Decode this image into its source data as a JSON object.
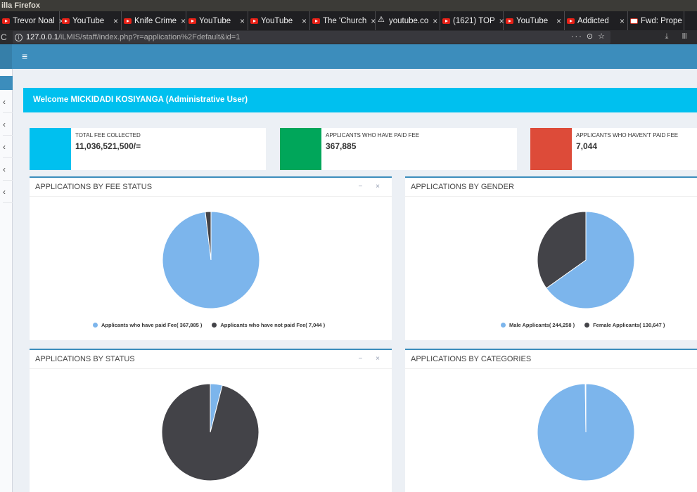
{
  "browser": {
    "title": "illa Firefox",
    "tabs": [
      {
        "label": "Trevor Noal",
        "icon": "youtube-icon"
      },
      {
        "label": "YouTube",
        "icon": "youtube-icon"
      },
      {
        "label": "Knife Crime",
        "icon": "youtube-icon"
      },
      {
        "label": "YouTube",
        "icon": "youtube-icon"
      },
      {
        "label": "YouTube",
        "icon": "youtube-icon"
      },
      {
        "label": "The 'Church",
        "icon": "youtube-icon"
      },
      {
        "label": "youtube.co",
        "icon": "warning-icon"
      },
      {
        "label": "(1621) TOP",
        "icon": "youtube-icon"
      },
      {
        "label": "YouTube",
        "icon": "youtube-icon"
      },
      {
        "label": "Addicted",
        "icon": "youtube-icon"
      },
      {
        "label": "Fwd: Prope",
        "icon": "gmail-icon"
      }
    ],
    "url_host": "127.0.0.1",
    "url_path": "/iLMIS/staff/index.php?r=application%2Fdefault&id=1",
    "url_right_icons": "··· ⊙ ☆",
    "toolbar_icons": "⤓ Ⅲ"
  },
  "app": {
    "menu_icon": "≡",
    "sidebar_chevrons": [
      "‹",
      "‹",
      "‹",
      "‹",
      "‹"
    ],
    "welcome": "Welcome MICKIDADI KOSIYANGA (Administrative User)"
  },
  "colors": {
    "primary": "#3c8dbc",
    "aqua": "#00c0ef",
    "green": "#00a65a",
    "red": "#dd4b39",
    "pie_blue": "#7cb5ec",
    "pie_dark": "#434348"
  },
  "info_boxes": [
    {
      "label": "TOTAL FEE COLLECTED",
      "value": "11,036,521,500/=",
      "color": "#00c0ef"
    },
    {
      "label": "APPLICANTS WHO HAVE PAID FEE",
      "value": "367,885",
      "color": "#00a65a"
    },
    {
      "label": "APPLICANTS WHO HAVEN'T PAID FEE",
      "value": "7,044",
      "color": "#dd4b39"
    }
  ],
  "boxes": {
    "fee_status": {
      "title": "APPLICATIONS BY FEE STATUS",
      "tools": "− ×"
    },
    "gender": {
      "title": "APPLICATIONS BY GENDER"
    },
    "status": {
      "title": "APPLICATIONS BY STATUS",
      "tools": "− ×"
    },
    "categories": {
      "title": "APPLICATIONS BY CATEGORIES"
    }
  },
  "chart_data": [
    {
      "type": "pie",
      "categories": [
        "Applicants who have paid Fee",
        "Applicants who have not paid Fee"
      ],
      "values": [
        367885,
        7044
      ],
      "legend_labels": [
        "Applicants who have paid Fee( 367,885 )",
        "Applicants who have not paid Fee( 7,044 )"
      ],
      "colors": [
        "#7cb5ec",
        "#434348"
      ]
    },
    {
      "type": "pie",
      "categories": [
        "Male Applicants",
        "Female Applicants"
      ],
      "values": [
        244258,
        130647
      ],
      "legend_labels": [
        "Male Applicants( 244,258 )",
        "Female Applicants( 130,647 )"
      ],
      "colors": [
        "#7cb5ec",
        "#434348"
      ]
    },
    {
      "type": "pie",
      "categories": [
        "",
        ""
      ],
      "values": [
        4,
        96
      ],
      "colors": [
        "#7cb5ec",
        "#434348"
      ]
    },
    {
      "type": "pie",
      "categories": [
        "",
        ""
      ],
      "values": [
        99.8,
        0.2
      ],
      "colors": [
        "#7cb5ec",
        "#434348"
      ]
    }
  ]
}
